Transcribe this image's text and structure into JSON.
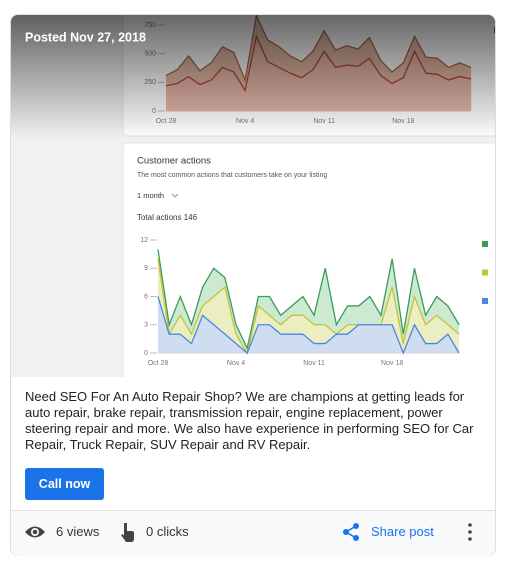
{
  "post": {
    "date": "Posted Nov 27, 2018",
    "description": "Need SEO For An Auto Repair Shop? We are champions at getting leads for auto repair, brake repair, transmission repair, engine replacement, power steering repair and more. We also have experience in performing SEO for Car Repair, Truck Repair, SUV Repair and RV Repair.",
    "button": "Call now"
  },
  "stats": {
    "views": "6 views",
    "clicks": "0 clicks",
    "share": "Share post"
  },
  "chart_data": [
    {
      "type": "area",
      "categories": [
        "Oct 28",
        null,
        null,
        null,
        null,
        null,
        null,
        "Nov 4",
        null,
        null,
        null,
        null,
        null,
        null,
        "Nov 11",
        null,
        null,
        null,
        null,
        null,
        null,
        "Nov 18",
        null,
        null,
        null,
        null,
        null,
        null
      ],
      "series": [
        {
          "color": "#a8644c",
          "values": [
            310,
            360,
            480,
            350,
            420,
            560,
            510,
            270,
            830,
            620,
            560,
            480,
            430,
            520,
            700,
            530,
            570,
            540,
            640,
            440,
            340,
            420,
            650,
            470,
            460,
            380,
            420,
            380
          ]
        },
        {
          "color": "#b8433a",
          "values": [
            220,
            240,
            300,
            230,
            270,
            380,
            340,
            180,
            650,
            430,
            380,
            330,
            290,
            360,
            520,
            380,
            400,
            390,
            460,
            310,
            240,
            290,
            520,
            330,
            320,
            270,
            300,
            280
          ]
        }
      ],
      "ylim": [
        0,
        750
      ],
      "yticks": [
        0,
        250,
        500,
        750
      ],
      "grid": false
    },
    {
      "type": "area",
      "title": "Customer actions",
      "subtitle": "The most common actions that customers take on your listing",
      "period": "1 month",
      "total": "Total actions 146",
      "categories": [
        "Oct 28",
        null,
        null,
        null,
        null,
        null,
        null,
        "Nov 4",
        null,
        null,
        null,
        null,
        null,
        null,
        "Nov 11",
        null,
        null,
        null,
        null,
        null,
        null,
        "Nov 18",
        null,
        null,
        null,
        null,
        null,
        null
      ],
      "series": [
        {
          "color": "#3c9a5b",
          "values": [
            11,
            3,
            6,
            3,
            7,
            9,
            8,
            3,
            0.5,
            6,
            6,
            4,
            5,
            6,
            4,
            9,
            3,
            5,
            5,
            6,
            4,
            10,
            2,
            9,
            4,
            6,
            5,
            3
          ]
        },
        {
          "color": "#c4c43a",
          "values": [
            10,
            2,
            4,
            2,
            5,
            6,
            7,
            2,
            0,
            5,
            4,
            3,
            4,
            4,
            3,
            3,
            2,
            3,
            3,
            3,
            3,
            7,
            1,
            6,
            3,
            4,
            3,
            2
          ]
        },
        {
          "color": "#4a86e8",
          "values": [
            6,
            2,
            2,
            1,
            4,
            3,
            2,
            1,
            0,
            3,
            3,
            2,
            2,
            2,
            1,
            1,
            2,
            2,
            3,
            3,
            3,
            3,
            0,
            3,
            1,
            1,
            2,
            0
          ]
        }
      ],
      "ylim": [
        0,
        12
      ],
      "yticks": [
        0,
        3,
        6,
        9,
        12
      ],
      "grid": false
    }
  ]
}
